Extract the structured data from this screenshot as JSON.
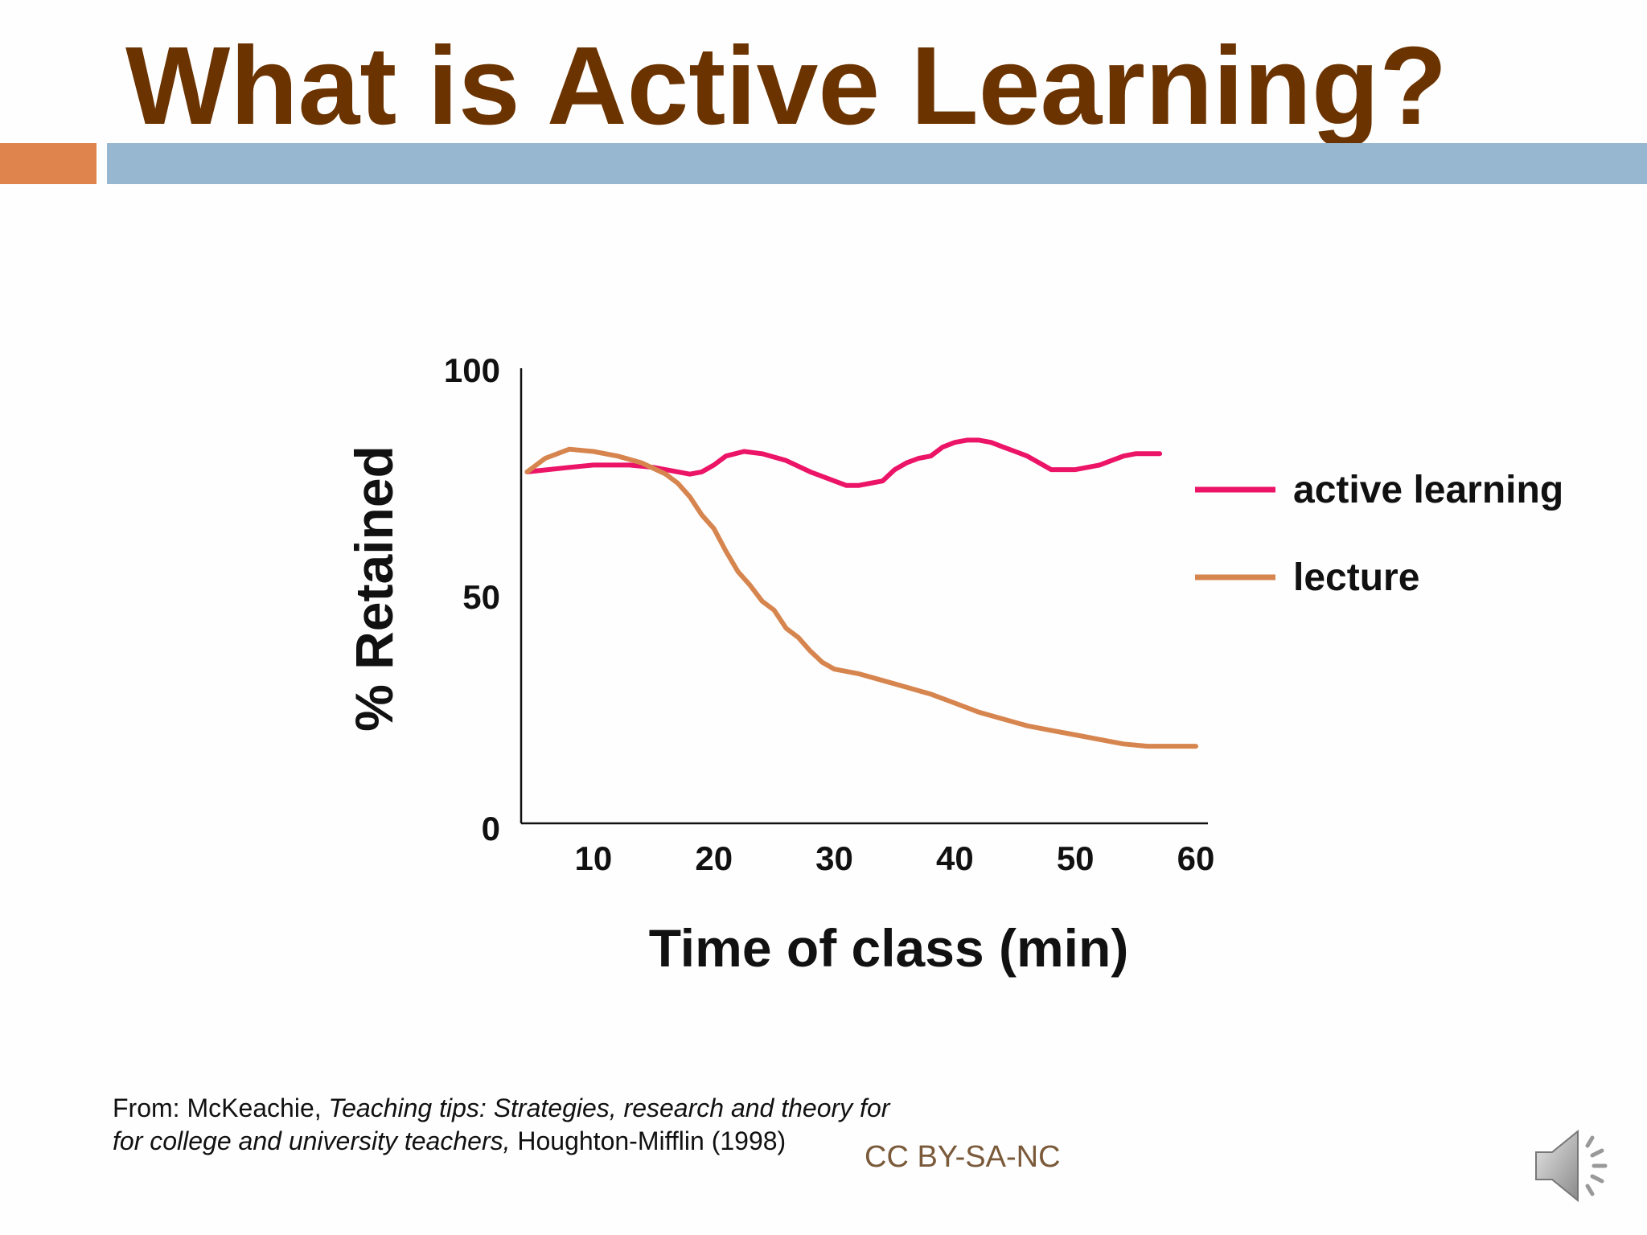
{
  "slide": {
    "title": "What is Active Learning?"
  },
  "colors": {
    "title": "#6b3300",
    "accent_orange": "#df844c",
    "accent_blue": "#97b6cf",
    "active_learning": "#ec1467",
    "lecture": "#d7854f"
  },
  "chart_data": {
    "type": "line",
    "xlabel": "Time of class (min)",
    "ylabel": "% Retained",
    "xlim": [
      4,
      61
    ],
    "ylim": [
      0,
      100
    ],
    "xticks": [
      10,
      20,
      30,
      40,
      50,
      60
    ],
    "yticks": [
      0,
      50,
      100
    ],
    "grid": false,
    "legend_position": "right",
    "series": [
      {
        "name": "active learning",
        "color": "#ec1467",
        "x": [
          4.5,
          8,
          10,
          13,
          15,
          18,
          19,
          20,
          21,
          22.5,
          24,
          26,
          28,
          30,
          31,
          32,
          33,
          34,
          35,
          36,
          37,
          38,
          39,
          40,
          41,
          42,
          43,
          44,
          45,
          46,
          47,
          48,
          50,
          52,
          53,
          54,
          55,
          56,
          57
        ],
        "y": [
          77.5,
          78.5,
          79,
          79,
          78.5,
          77,
          77.5,
          79,
          81,
          82,
          81.5,
          80,
          77.5,
          75.5,
          74.5,
          74.5,
          75,
          75.5,
          78,
          79.5,
          80.5,
          81,
          83,
          84,
          84.5,
          84.5,
          84,
          83,
          82,
          81,
          79.5,
          78,
          78,
          79,
          80,
          81,
          81.5,
          81.5,
          81.5
        ],
        "values_line": true
      },
      {
        "name": "lecture",
        "color": "#d7854f",
        "x": [
          4.5,
          6,
          8,
          10,
          12,
          14,
          16,
          17,
          18,
          19,
          20,
          21,
          22,
          23,
          24,
          25,
          26,
          27,
          28,
          29,
          30,
          32,
          34,
          36,
          38,
          40,
          42,
          44,
          46,
          48,
          50,
          52,
          54,
          56,
          58,
          60
        ],
        "y": [
          77.5,
          80.5,
          82.5,
          82,
          81,
          79.5,
          77,
          75,
          72,
          68,
          65,
          60,
          55.5,
          52.5,
          49,
          47,
          43,
          41,
          38,
          35.5,
          34,
          33,
          31.5,
          30,
          28.5,
          26.5,
          24.5,
          23,
          21.5,
          20.5,
          19.5,
          18.5,
          17.5,
          17,
          17,
          17
        ]
      }
    ]
  },
  "citation": {
    "line1_prefix": "From: McKeachie, ",
    "line1_italic": "Teaching tips: Strategies, research and theory for",
    "line2_italic": "for college and university teachers,",
    "line2_suffix": " Houghton-Mifflin (1998)"
  },
  "license": "CC BY-SA-NC",
  "icons": {
    "speaker": "speaker-icon"
  }
}
